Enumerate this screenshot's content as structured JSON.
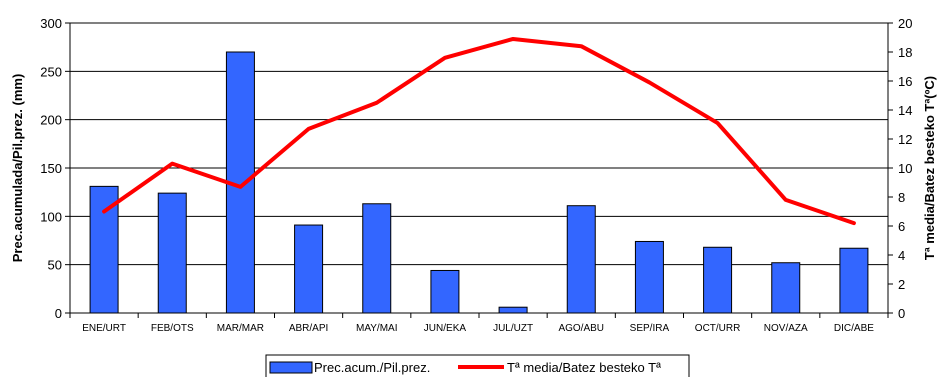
{
  "chart_data": {
    "type": "bar",
    "categories": [
      "ENE/URT",
      "FEB/OTS",
      "MAR/MAR",
      "ABR/API",
      "MAY/MAI",
      "JUN/EKA",
      "JUL/UZT",
      "AGO/ABU",
      "SEP/IRA",
      "OCT/URR",
      "NOV/AZA",
      "DIC/ABE"
    ],
    "series": [
      {
        "name": "Prec.acum./Pil.prez.",
        "type": "bar",
        "axis": "left",
        "color": "#3366ff",
        "values": [
          131,
          124,
          270,
          91,
          113,
          44,
          6,
          111,
          74,
          68,
          52,
          67
        ]
      },
      {
        "name": "Tª media/Batez besteko Tª",
        "type": "line",
        "axis": "right",
        "color": "#ff0000",
        "values": [
          7.0,
          10.3,
          8.7,
          12.7,
          14.5,
          17.6,
          18.9,
          18.4,
          15.9,
          13.1,
          7.8,
          6.2
        ]
      }
    ],
    "ylabel": "Prec.acumulada/Pil.prez. (mm)",
    "ylabel_right": "Tª media/Batez besteko Tª(ºC)",
    "ylim": [
      0,
      300
    ],
    "ylim_right": [
      0,
      20
    ],
    "yticks": [
      0,
      50,
      100,
      150,
      200,
      250,
      300
    ],
    "yticks_right": [
      0,
      2,
      4,
      6,
      8,
      10,
      12,
      14,
      16,
      18,
      20
    ],
    "grid": true,
    "legend_position": "bottom"
  }
}
